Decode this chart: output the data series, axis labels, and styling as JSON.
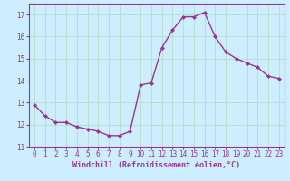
{
  "x": [
    0,
    1,
    2,
    3,
    4,
    5,
    6,
    7,
    8,
    9,
    10,
    11,
    12,
    13,
    14,
    15,
    16,
    17,
    18,
    19,
    20,
    21,
    22,
    23
  ],
  "y": [
    12.9,
    12.4,
    12.1,
    12.1,
    11.9,
    11.8,
    11.7,
    11.5,
    11.5,
    11.7,
    13.8,
    13.9,
    15.5,
    16.3,
    16.9,
    16.9,
    17.1,
    16.0,
    15.3,
    15.0,
    14.8,
    14.6,
    14.2,
    14.1
  ],
  "line_color": "#993399",
  "marker": "D",
  "marker_size": 2.0,
  "bg_color": "#cceeff",
  "grid_color": "#aaddcc",
  "xlabel": "Windchill (Refroidissement éolien,°C)",
  "xlabel_color": "#993399",
  "tick_color": "#993399",
  "spine_color": "#993399",
  "ylim": [
    11,
    17.5
  ],
  "xlim": [
    -0.5,
    23.5
  ],
  "yticks": [
    11,
    12,
    13,
    14,
    15,
    16,
    17
  ],
  "xticks": [
    0,
    1,
    2,
    3,
    4,
    5,
    6,
    7,
    8,
    9,
    10,
    11,
    12,
    13,
    14,
    15,
    16,
    17,
    18,
    19,
    20,
    21,
    22,
    23
  ],
  "tick_fontsize": 5.5,
  "xlabel_fontsize": 6.0,
  "linewidth": 1.0
}
